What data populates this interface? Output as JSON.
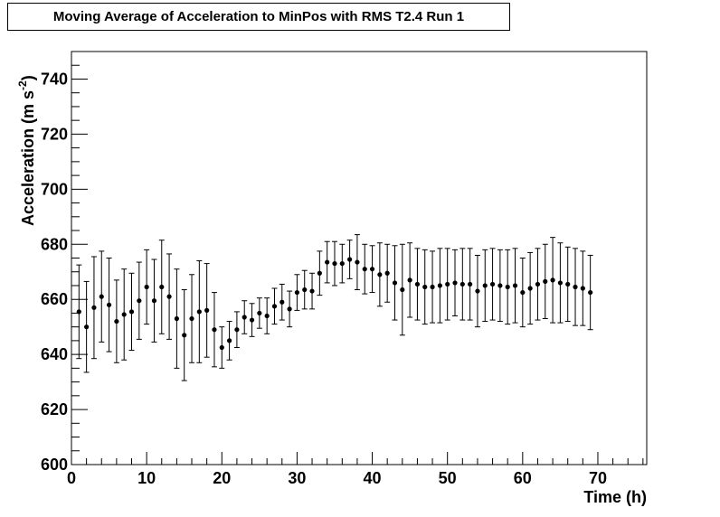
{
  "chart_data": {
    "type": "scatter",
    "title": "Moving Average of Acceleration to MinPos with RMS T2.4 Run 1",
    "xlabel": "Time (h)",
    "ylabel_main": "Acceleration (m s",
    "ylabel_exp": "-2",
    "ylabel_close": ")",
    "xlim": [
      0,
      76.5
    ],
    "ylim": [
      600,
      750
    ],
    "x_ticks": [
      0,
      10,
      20,
      30,
      40,
      50,
      60,
      70
    ],
    "y_ticks": [
      600,
      620,
      640,
      660,
      680,
      700,
      720,
      740
    ],
    "grid": false,
    "legend": "none",
    "marker_color": "#000000",
    "series": [
      {
        "x": [
          1.0,
          2.0,
          3.0,
          4.0,
          5.0,
          6.0,
          7.0,
          8.0,
          9.0,
          10.0,
          11.0,
          12.0,
          13.0,
          14.0,
          15.0,
          16.0,
          17.0,
          18.0,
          19.0,
          20.0,
          21.0,
          22.0,
          23.0,
          24.0,
          25.0,
          26.0,
          27.0,
          28.0,
          29.0,
          30.0,
          31.0,
          32.0,
          33.0,
          34.0,
          35.0,
          36.0,
          37.0,
          38.0,
          39.0,
          40.0,
          41.0,
          42.0,
          43.0,
          44.0,
          45.0,
          46.0,
          47.0,
          48.0,
          49.0,
          50.0,
          51.0,
          52.0,
          53.0,
          54.0,
          55.0,
          56.0,
          57.0,
          58.0,
          59.0,
          60.0,
          61.0,
          62.0,
          63.0,
          64.0,
          65.0,
          66.0,
          67.0,
          68.0,
          69.0
        ],
        "y": [
          655.5,
          650.0,
          657.0,
          661.0,
          658.0,
          652.0,
          654.5,
          655.5,
          659.5,
          664.5,
          659.5,
          664.5,
          661.0,
          653.0,
          647.0,
          653.0,
          655.5,
          656.0,
          649.0,
          642.5,
          645.0,
          649.0,
          653.5,
          652.5,
          655.0,
          654.0,
          657.5,
          659.0,
          656.5,
          662.5,
          663.5,
          663.0,
          669.5,
          673.5,
          673.0,
          673.0,
          674.5,
          673.5,
          671.0,
          671.0,
          669.0,
          669.5,
          666.0,
          663.5,
          667.0,
          665.5,
          664.5,
          664.5,
          665.0,
          665.5,
          666.0,
          665.5,
          665.5,
          663.0,
          665.0,
          665.5,
          665.0,
          664.5,
          665.0,
          662.5,
          664.0,
          665.5,
          666.5,
          667.0,
          666.0,
          665.5,
          664.5,
          664.0,
          662.5
        ],
        "err": [
          17.0,
          16.5,
          18.5,
          16.5,
          17.0,
          15.0,
          16.5,
          14.0,
          14.0,
          13.5,
          15.0,
          17.0,
          15.5,
          18.0,
          16.5,
          16.0,
          18.5,
          17.0,
          13.5,
          7.5,
          7.0,
          6.5,
          6.0,
          6.0,
          5.5,
          6.5,
          6.5,
          6.5,
          6.5,
          6.5,
          7.0,
          6.5,
          8.0,
          7.5,
          8.0,
          7.0,
          7.0,
          10.0,
          9.0,
          8.5,
          11.5,
          10.5,
          13.5,
          16.5,
          13.5,
          13.0,
          13.5,
          13.0,
          13.5,
          13.0,
          12.0,
          13.0,
          13.0,
          13.0,
          13.0,
          13.0,
          13.0,
          13.5,
          13.5,
          12.5,
          13.0,
          13.0,
          13.5,
          15.5,
          14.5,
          13.5,
          14.0,
          13.5,
          13.5
        ]
      }
    ]
  }
}
